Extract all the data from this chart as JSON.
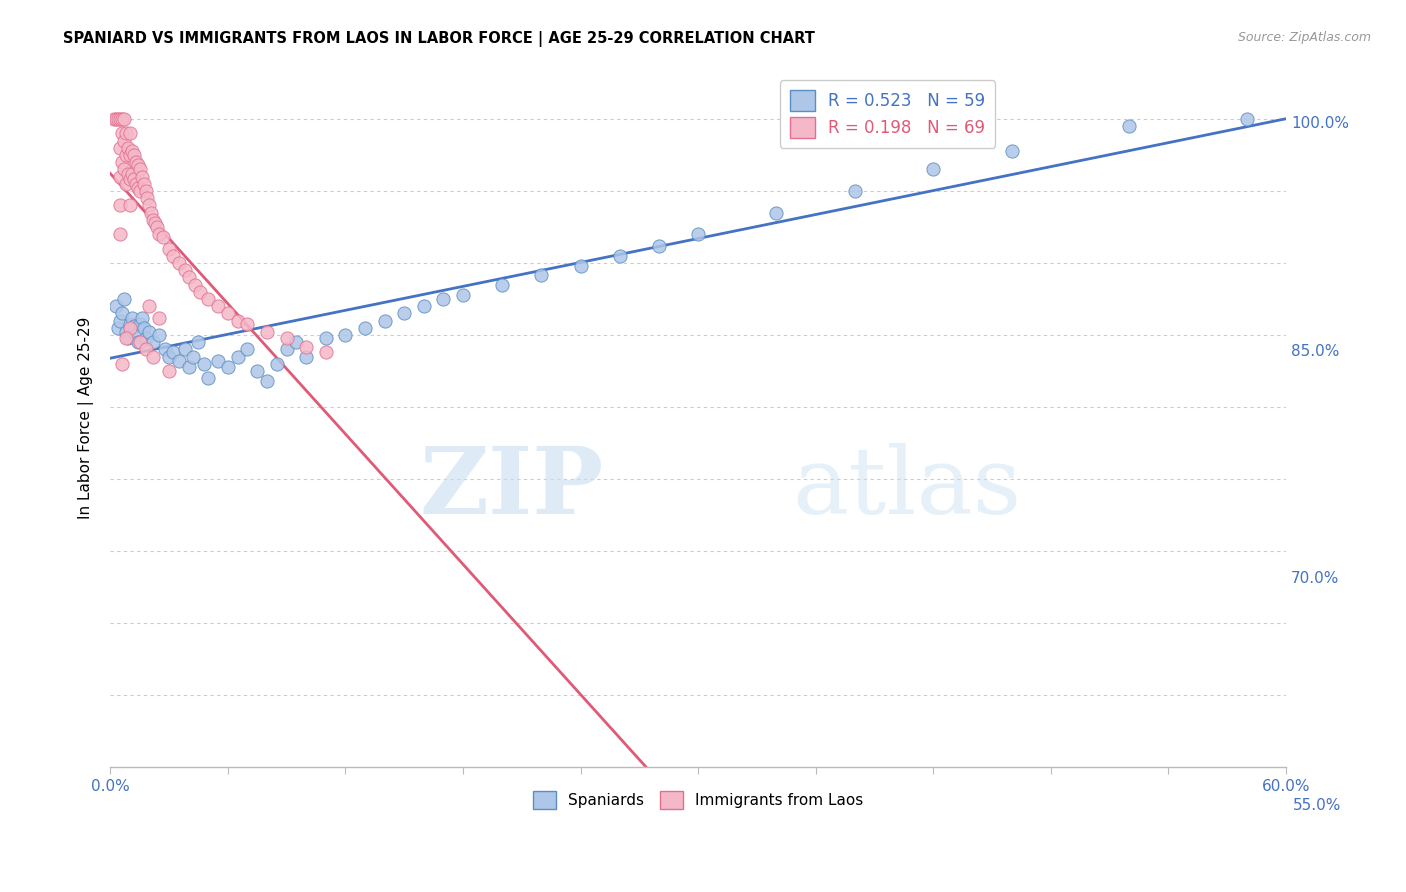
{
  "title": "SPANIARD VS IMMIGRANTS FROM LAOS IN LABOR FORCE | AGE 25-29 CORRELATION CHART",
  "source_text": "Source: ZipAtlas.com",
  "ylabel": "In Labor Force | Age 25-29",
  "xlim": [
    0.0,
    0.6
  ],
  "ylim": [
    0.575,
    1.035
  ],
  "yticks": [
    0.6,
    0.65,
    0.7,
    0.75,
    0.8,
    0.85,
    0.9,
    0.95,
    1.0
  ],
  "ytick_labels_right": [
    "",
    "",
    "70.0%",
    "",
    "",
    "85.0%",
    "",
    "",
    "100.0%"
  ],
  "ytick_extra": [
    0.55
  ],
  "ytick_extra_labels": [
    "55.0%"
  ],
  "xtick_left_label": "0.0%",
  "xtick_right_label": "60.0%",
  "blue_r": 0.523,
  "blue_n": 59,
  "pink_r": 0.198,
  "pink_n": 69,
  "blue_color": "#aec6e8",
  "pink_color": "#f5b8c8",
  "blue_edge_color": "#5b8ec4",
  "pink_edge_color": "#e07090",
  "blue_line_color": "#4472c4",
  "pink_line_color": "#e05a78",
  "legend_label_blue": "Spaniards",
  "legend_label_pink": "Immigrants from Laos",
  "watermark_zip": "ZIP",
  "watermark_atlas": "atlas",
  "blue_scatter_x": [
    0.003,
    0.004,
    0.005,
    0.006,
    0.007,
    0.008,
    0.009,
    0.01,
    0.011,
    0.012,
    0.013,
    0.014,
    0.015,
    0.016,
    0.017,
    0.018,
    0.02,
    0.022,
    0.025,
    0.028,
    0.03,
    0.032,
    0.035,
    0.038,
    0.04,
    0.042,
    0.045,
    0.048,
    0.05,
    0.055,
    0.06,
    0.065,
    0.07,
    0.075,
    0.08,
    0.085,
    0.09,
    0.095,
    0.1,
    0.11,
    0.12,
    0.13,
    0.14,
    0.15,
    0.16,
    0.17,
    0.18,
    0.2,
    0.22,
    0.24,
    0.26,
    0.28,
    0.3,
    0.34,
    0.38,
    0.42,
    0.46,
    0.52,
    0.58
  ],
  "blue_scatter_y": [
    0.87,
    0.855,
    0.86,
    0.865,
    0.875,
    0.852,
    0.848,
    0.858,
    0.862,
    0.856,
    0.85,
    0.845,
    0.858,
    0.862,
    0.855,
    0.848,
    0.852,
    0.845,
    0.85,
    0.84,
    0.835,
    0.838,
    0.832,
    0.84,
    0.828,
    0.835,
    0.845,
    0.83,
    0.82,
    0.832,
    0.828,
    0.835,
    0.84,
    0.825,
    0.818,
    0.83,
    0.84,
    0.845,
    0.835,
    0.848,
    0.85,
    0.855,
    0.86,
    0.865,
    0.87,
    0.875,
    0.878,
    0.885,
    0.892,
    0.898,
    0.905,
    0.912,
    0.92,
    0.935,
    0.95,
    0.965,
    0.978,
    0.995,
    1.0
  ],
  "pink_scatter_x": [
    0.002,
    0.003,
    0.004,
    0.005,
    0.005,
    0.005,
    0.005,
    0.005,
    0.006,
    0.006,
    0.006,
    0.007,
    0.007,
    0.007,
    0.008,
    0.008,
    0.008,
    0.009,
    0.009,
    0.01,
    0.01,
    0.01,
    0.01,
    0.011,
    0.011,
    0.012,
    0.012,
    0.013,
    0.013,
    0.014,
    0.014,
    0.015,
    0.015,
    0.016,
    0.017,
    0.018,
    0.019,
    0.02,
    0.021,
    0.022,
    0.023,
    0.024,
    0.025,
    0.027,
    0.03,
    0.032,
    0.035,
    0.038,
    0.04,
    0.043,
    0.046,
    0.05,
    0.055,
    0.06,
    0.065,
    0.07,
    0.08,
    0.09,
    0.1,
    0.11,
    0.02,
    0.025,
    0.01,
    0.008,
    0.015,
    0.018,
    0.022,
    0.006,
    0.03
  ],
  "pink_scatter_y": [
    1.0,
    1.0,
    1.0,
    1.0,
    0.98,
    0.96,
    0.94,
    0.92,
    1.0,
    0.99,
    0.97,
    1.0,
    0.985,
    0.965,
    0.99,
    0.975,
    0.955,
    0.98,
    0.962,
    0.99,
    0.975,
    0.958,
    0.94,
    0.978,
    0.962,
    0.975,
    0.958,
    0.97,
    0.955,
    0.968,
    0.952,
    0.965,
    0.95,
    0.96,
    0.955,
    0.95,
    0.945,
    0.94,
    0.935,
    0.93,
    0.928,
    0.925,
    0.92,
    0.918,
    0.91,
    0.905,
    0.9,
    0.895,
    0.89,
    0.885,
    0.88,
    0.875,
    0.87,
    0.865,
    0.86,
    0.858,
    0.852,
    0.848,
    0.842,
    0.838,
    0.87,
    0.862,
    0.855,
    0.848,
    0.845,
    0.84,
    0.835,
    0.83,
    0.825
  ]
}
